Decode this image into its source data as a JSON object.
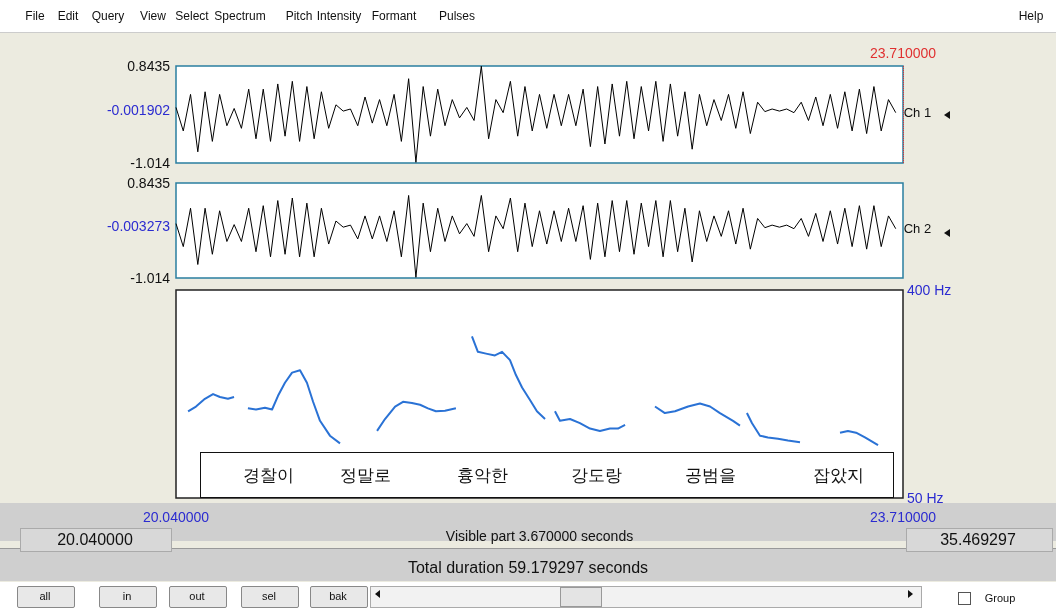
{
  "chart_data": [
    {
      "type": "line",
      "xlim": [
        20.04,
        23.71
      ],
      "ylim": [
        -1.014,
        0.8435
      ],
      "yticks": [
        0.8435,
        -0.001902,
        -1.014
      ],
      "tick_labels": "y",
      "ref_lines": [
        {
          "axis": "x",
          "value": 23.71,
          "label": "23.710000",
          "color": "#e03030",
          "line_style": "dotted"
        }
      ],
      "x": [
        20.04,
        20.0767,
        20.1134,
        20.1501,
        20.1868,
        20.2235,
        20.2602,
        20.2969,
        20.3336,
        20.3703,
        20.407,
        20.4437,
        20.4804,
        20.5171,
        20.5538,
        20.5905,
        20.6272,
        20.6639,
        20.7006,
        20.7373,
        20.774,
        20.8107,
        20.8474,
        20.8841,
        20.9208,
        20.9575,
        20.9942,
        21.0309,
        21.0676,
        21.1043,
        21.141,
        21.1777,
        21.2144,
        21.2511,
        21.2878,
        21.3245,
        21.3612,
        21.3979,
        21.4346,
        21.4713,
        21.508,
        21.5447,
        21.5814,
        21.6181,
        21.6548,
        21.6915,
        21.7282,
        21.7649,
        21.8016,
        21.8383,
        21.875,
        21.9117,
        21.9484,
        21.9851,
        22.0218,
        22.0585,
        22.0952,
        22.1319,
        22.1686,
        22.2053,
        22.242,
        22.2787,
        22.3154,
        22.3521,
        22.3888,
        22.4255,
        22.4622,
        22.4989,
        22.5356,
        22.5723,
        22.609,
        22.6457,
        22.6824,
        22.7191,
        22.7558,
        22.7925,
        22.8292,
        22.8659,
        22.9026,
        22.9393,
        22.976,
        23.0127,
        23.0494,
        23.0861,
        23.1228,
        23.1595,
        23.1962,
        23.2329,
        23.2696,
        23.3063,
        23.343,
        23.3797,
        23.4164,
        23.4531,
        23.4898,
        23.5265,
        23.5632,
        23.5999,
        23.6366,
        23.6733
      ],
      "series": [
        {
          "name": "Ch 1",
          "color": "#000000",
          "values": [
            0.05,
            -0.4,
            0.3,
            -0.8,
            0.35,
            -0.6,
            0.3,
            -0.3,
            0.03,
            -0.35,
            0.4,
            -0.55,
            0.4,
            -0.6,
            0.5,
            -0.5,
            0.55,
            -0.6,
            0.45,
            -0.55,
            0.35,
            -0.35,
            0.1,
            -0.02,
            0.02,
            -0.3,
            0.25,
            -0.25,
            0.2,
            -0.3,
            0.3,
            -0.6,
            0.6,
            -1.0,
            0.45,
            -0.5,
            0.4,
            -0.3,
            0.2,
            -0.15,
            0.05,
            -0.2,
            0.84,
            -0.55,
            0.2,
            -0.05,
            0.55,
            -0.5,
            0.45,
            -0.4,
            0.3,
            -0.35,
            0.3,
            -0.3,
            0.3,
            -0.3,
            0.4,
            -0.7,
            0.45,
            -0.65,
            0.5,
            -0.5,
            0.55,
            -0.55,
            0.45,
            -0.4,
            0.55,
            -0.6,
            0.5,
            -0.5,
            0.35,
            -0.75,
            0.3,
            -0.3,
            0.2,
            -0.2,
            0.3,
            -0.35,
            0.35,
            -0.45,
            0.15,
            -0.03,
            0.02,
            -0.02,
            0.02,
            -0.05,
            0.15,
            -0.2,
            0.25,
            -0.3,
            0.3,
            -0.35,
            0.35,
            -0.4,
            0.4,
            -0.45,
            0.45,
            -0.4,
            0.2,
            -0.05
          ]
        }
      ]
    },
    {
      "type": "line",
      "xlim": [
        20.04,
        23.71
      ],
      "ylim": [
        -1.014,
        0.8435
      ],
      "yticks": [
        0.8435,
        -0.003273,
        -1.014
      ],
      "tick_labels": "y",
      "x": [
        20.04,
        20.0767,
        20.1134,
        20.1501,
        20.1868,
        20.2235,
        20.2602,
        20.2969,
        20.3336,
        20.3703,
        20.407,
        20.4437,
        20.4804,
        20.5171,
        20.5538,
        20.5905,
        20.6272,
        20.6639,
        20.7006,
        20.7373,
        20.774,
        20.8107,
        20.8474,
        20.8841,
        20.9208,
        20.9575,
        20.9942,
        21.0309,
        21.0676,
        21.1043,
        21.141,
        21.1777,
        21.2144,
        21.2511,
        21.2878,
        21.3245,
        21.3612,
        21.3979,
        21.4346,
        21.4713,
        21.508,
        21.5447,
        21.5814,
        21.6181,
        21.6548,
        21.6915,
        21.7282,
        21.7649,
        21.8016,
        21.8383,
        21.875,
        21.9117,
        21.9484,
        21.9851,
        22.0218,
        22.0585,
        22.0952,
        22.1319,
        22.1686,
        22.2053,
        22.242,
        22.2787,
        22.3154,
        22.3521,
        22.3888,
        22.4255,
        22.4622,
        22.4989,
        22.5356,
        22.5723,
        22.609,
        22.6457,
        22.6824,
        22.7191,
        22.7558,
        22.7925,
        22.8292,
        22.8659,
        22.9026,
        22.9393,
        22.976,
        23.0127,
        23.0494,
        23.0861,
        23.1228,
        23.1595,
        23.1962,
        23.2329,
        23.2696,
        23.3063,
        23.343,
        23.3797,
        23.4164,
        23.4531,
        23.4898,
        23.5265,
        23.5632,
        23.5999,
        23.6366,
        23.6733
      ],
      "series": [
        {
          "name": "Ch 2",
          "color": "#000000",
          "values": [
            0.05,
            -0.4,
            0.35,
            -0.75,
            0.35,
            -0.55,
            0.3,
            -0.3,
            0.03,
            -0.3,
            0.35,
            -0.5,
            0.4,
            -0.6,
            0.5,
            -0.55,
            0.55,
            -0.6,
            0.45,
            -0.6,
            0.35,
            -0.35,
            0.1,
            -0.02,
            0.02,
            -0.25,
            0.2,
            -0.25,
            0.2,
            -0.3,
            0.3,
            -0.6,
            0.6,
            -1.0,
            0.45,
            -0.5,
            0.35,
            -0.3,
            0.2,
            -0.15,
            0.05,
            -0.2,
            0.6,
            -0.5,
            0.2,
            -0.05,
            0.55,
            -0.5,
            0.45,
            -0.4,
            0.3,
            -0.35,
            0.3,
            -0.3,
            0.35,
            -0.3,
            0.4,
            -0.65,
            0.45,
            -0.6,
            0.5,
            -0.5,
            0.5,
            -0.55,
            0.45,
            -0.4,
            0.5,
            -0.6,
            0.5,
            -0.5,
            0.35,
            -0.7,
            0.3,
            -0.3,
            0.2,
            -0.2,
            0.3,
            -0.35,
            0.35,
            -0.45,
            0.15,
            -0.03,
            0.02,
            -0.02,
            0.02,
            -0.05,
            0.15,
            -0.2,
            0.25,
            -0.3,
            0.3,
            -0.35,
            0.35,
            -0.4,
            0.4,
            -0.45,
            0.4,
            -0.4,
            0.2,
            -0.05
          ]
        }
      ]
    },
    {
      "type": "line",
      "xlim": [
        20.04,
        23.71
      ],
      "xticks": [
        {
          "value": 20.04,
          "label": "20.040000"
        },
        {
          "value": 23.71,
          "label": "23.710000"
        }
      ],
      "ylim": [
        50,
        400
      ],
      "yticks": [
        {
          "value": 400,
          "label": "400 Hz"
        },
        {
          "value": 50,
          "label": "50 Hz"
        }
      ],
      "xlabel": "Visible part 3.670000 seconds",
      "series": [
        {
          "color": "#2a72d5",
          "x": [
            20.101,
            20.141,
            20.186,
            20.227,
            20.262,
            20.302,
            20.333,
            20.37,
            20.403,
            20.444,
            20.489,
            20.525,
            20.555,
            20.59,
            20.626,
            20.666,
            20.701,
            20.732,
            20.767,
            20.817,
            20.868,
            20.96,
            21.055,
            21.095,
            21.146,
            21.186,
            21.231,
            21.272,
            21.312,
            21.352,
            21.398,
            21.453,
            21.5,
            21.534,
            21.564,
            21.605,
            21.65,
            21.686,
            21.726,
            21.756,
            21.787,
            21.827,
            21.862,
            21.903,
            21.93,
            21.953,
            21.978,
            22.029,
            22.079,
            22.13,
            22.18,
            22.231,
            22.271,
            22.307,
            22.38,
            22.458,
            22.508,
            22.559,
            22.625,
            22.685,
            22.736,
            22.786,
            22.852,
            22.887,
            22.905,
            22.922,
            22.948,
            22.988,
            23.028,
            23.079,
            23.129,
            23.19,
            23.3,
            23.392,
            23.432,
            23.473,
            23.518,
            23.584
          ],
          "values": [
            196,
            204,
            217,
            225,
            220,
            217,
            220,
            null,
            201,
            199,
            202,
            199,
            222,
            244,
            261,
            265,
            244,
            212,
            180,
            155,
            142,
            null,
            163,
            183,
            204,
            212,
            210,
            207,
            201,
            196,
            197,
            201,
            null,
            322,
            296,
            293,
            290,
            296,
            282,
            257,
            236,
            215,
            196,
            183,
            null,
            196,
            180,
            183,
            176,
            167,
            163,
            167,
            167,
            173,
            null,
            204,
            193,
            196,
            204,
            209,
            204,
            193,
            180,
            172,
            null,
            193,
            176,
            155,
            152,
            150,
            147,
            144,
            null,
            160,
            163,
            160,
            152,
            139
          ]
        }
      ],
      "annotations": [
        "경찰이",
        "정말로",
        "흉악한",
        "강도랑",
        "공범을",
        "잡았지",
        "20.040000",
        "35.469297",
        "Total duration 59.179297 seconds",
        "File",
        "Edit",
        "Query",
        "View",
        "Select",
        "Spectrum",
        "Pitch",
        "Intensity",
        "Formant",
        "Pulses",
        "Help",
        "all",
        "in",
        "out",
        "sel",
        "bak",
        "Group"
      ]
    }
  ]
}
